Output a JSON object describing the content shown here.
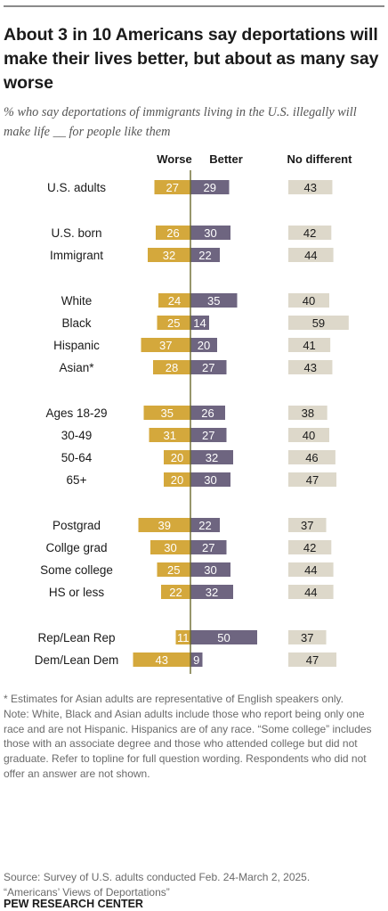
{
  "title": "About 3 in 10 Americans say deportations will make their lives better, but about as many say worse",
  "subtitle": "% who say deportations of immigrants living in the U.S. illegally will make life __ for people like them",
  "chart_data": {
    "type": "bar",
    "orientation": "horizontal",
    "layout": "diverging",
    "series": [
      {
        "name": "Worse",
        "color": "#d4a83c"
      },
      {
        "name": "Better",
        "color": "#6e6580"
      },
      {
        "name": "No different",
        "color": "#ddd8ca"
      }
    ],
    "rows": [
      {
        "label": "U.S. adults",
        "worse": 27,
        "better": 29,
        "no_different": 43
      },
      {
        "label": "U.S. born",
        "worse": 26,
        "better": 30,
        "no_different": 42
      },
      {
        "label": "Immigrant",
        "worse": 32,
        "better": 22,
        "no_different": 44
      },
      {
        "label": "White",
        "worse": 24,
        "better": 35,
        "no_different": 40
      },
      {
        "label": "Black",
        "worse": 25,
        "better": 14,
        "no_different": 59
      },
      {
        "label": "Hispanic",
        "worse": 37,
        "better": 20,
        "no_different": 41
      },
      {
        "label": "Asian*",
        "worse": 28,
        "better": 27,
        "no_different": 43
      },
      {
        "label": "Ages 18-29",
        "worse": 35,
        "better": 26,
        "no_different": 38
      },
      {
        "label": "30-49",
        "worse": 31,
        "better": 27,
        "no_different": 40
      },
      {
        "label": "50-64",
        "worse": 20,
        "better": 32,
        "no_different": 46
      },
      {
        "label": "65+",
        "worse": 20,
        "better": 30,
        "no_different": 47
      },
      {
        "label": "Postgrad",
        "worse": 39,
        "better": 22,
        "no_different": 37
      },
      {
        "label": "Collge grad",
        "worse": 30,
        "better": 27,
        "no_different": 42
      },
      {
        "label": "Some college",
        "worse": 25,
        "better": 30,
        "no_different": 44
      },
      {
        "label": "HS or less",
        "worse": 22,
        "better": 32,
        "no_different": 44
      },
      {
        "label": "Rep/Lean Rep",
        "worse": 11,
        "better": 50,
        "no_different": 37
      },
      {
        "label": "Dem/Lean Dem",
        "worse": 43,
        "better": 9,
        "no_different": 47
      }
    ],
    "groups": [
      [
        0
      ],
      [
        1,
        2
      ],
      [
        3,
        4,
        5,
        6
      ],
      [
        7,
        8,
        9,
        10
      ],
      [
        11,
        12,
        13,
        14
      ],
      [
        15,
        16
      ]
    ]
  },
  "footnotes": [
    "* Estimates for Asian adults are representative of English speakers only.",
    "Note: White, Black and Asian adults include those who report being only one race and are not Hispanic. Hispanics are of any race. “Some college” includes those with an associate degree and those who attended college but did not graduate. Refer to topline for full question wording. Respondents who did not offer an answer are not shown."
  ],
  "source": [
    "Source: Survey of U.S. adults conducted Feb. 24-March 2, 2025.",
    "“Americans’ Views of Deportations”"
  ],
  "brand": "PEW RESEARCH CENTER"
}
